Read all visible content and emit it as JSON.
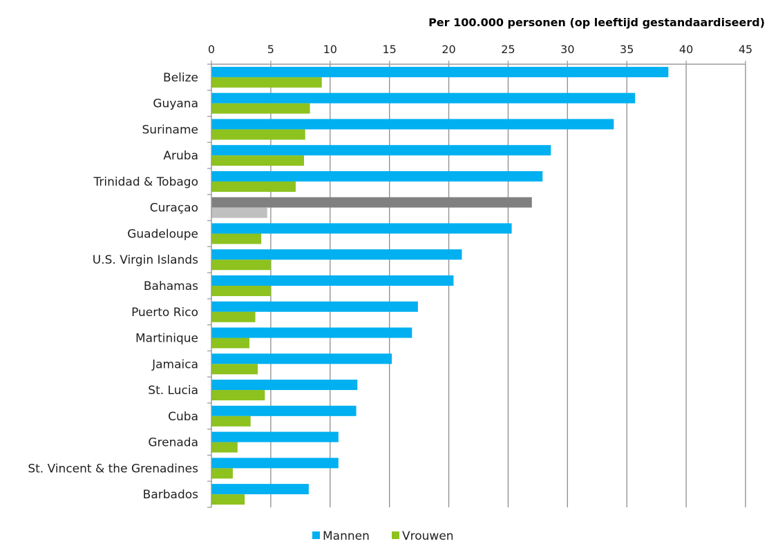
{
  "chart_data": {
    "type": "bar",
    "orientation": "horizontal",
    "title": "",
    "xlabel": "Per 100.000 personen (op leeftijd gestandaardiseerd)",
    "ylabel": "",
    "xlim": [
      0,
      45
    ],
    "x_ticks": [
      0,
      5,
      10,
      15,
      20,
      25,
      30,
      35,
      40,
      45
    ],
    "x_axis_position": "top",
    "grid": true,
    "legend": "bottom",
    "categories": [
      "Belize",
      "Guyana",
      "Suriname",
      "Aruba",
      "Trinidad & Tobago",
      "Curaçao",
      "Guadeloupe",
      "U.S. Virgin Islands",
      "Bahamas",
      "Puerto Rico",
      "Martinique",
      "Jamaica",
      "St. Lucia",
      "Cuba",
      "Grenada",
      "St. Vincent & the Grenadines",
      "Barbados"
    ],
    "series": [
      {
        "name": "Mannen",
        "color": "#00b0f0",
        "values": [
          38.5,
          35.7,
          33.9,
          28.6,
          27.9,
          27.0,
          25.3,
          21.1,
          20.4,
          17.4,
          16.9,
          15.2,
          12.3,
          12.2,
          10.7,
          10.7,
          8.2
        ]
      },
      {
        "name": "Vrouwen",
        "color": "#8dc21f",
        "values": [
          9.3,
          8.3,
          7.9,
          7.8,
          7.1,
          4.7,
          4.2,
          5.0,
          5.0,
          3.7,
          3.2,
          3.9,
          4.5,
          3.3,
          2.2,
          1.8,
          2.8
        ]
      }
    ],
    "highlight": {
      "category": "Curaçao",
      "colors": [
        "#808080",
        "#c0c0c0"
      ]
    },
    "colors": {
      "axis": "#9b9b9b",
      "grid": "#8c8c8c"
    }
  }
}
